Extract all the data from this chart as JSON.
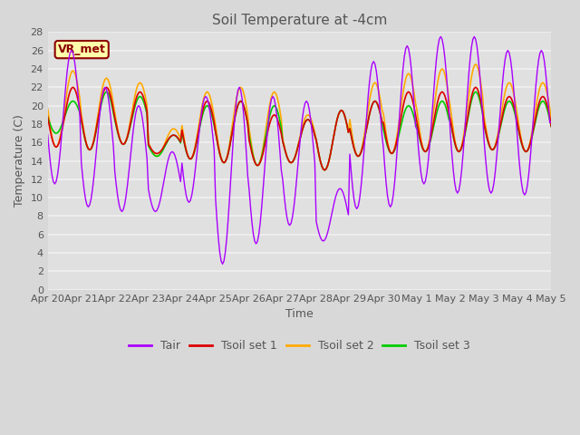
{
  "title": "Soil Temperature at -4cm",
  "xlabel": "Time",
  "ylabel": "Temperature (C)",
  "ylim": [
    0,
    28
  ],
  "yticks": [
    0,
    2,
    4,
    6,
    8,
    10,
    12,
    14,
    16,
    18,
    20,
    22,
    24,
    26,
    28
  ],
  "bg_color": "#d8d8d8",
  "plot_bg_color": "#e0e0e0",
  "grid_color": "#f0f0f0",
  "annotation_text": "VR_met",
  "annotation_bg": "#ffffaa",
  "annotation_border": "#8B0000",
  "colors": {
    "Tair": "#aa00ff",
    "Tsoil1": "#dd0000",
    "Tsoil2": "#ffaa00",
    "Tsoil3": "#00cc00"
  },
  "legend_labels": [
    "Tair",
    "Tsoil set 1",
    "Tsoil set 2",
    "Tsoil set 3"
  ],
  "tick_labels": [
    "Apr 20",
    "Apr 21",
    "Apr 22",
    "Apr 23",
    "Apr 24",
    "Apr 25",
    "Apr 26",
    "Apr 27",
    "Apr 28",
    "Apr 29",
    "Apr 30",
    "May 1",
    "May 2",
    "May 3",
    "May 4",
    "May 5"
  ],
  "num_points": 361,
  "title_fontsize": 11,
  "tick_fontsize": 8,
  "label_fontsize": 9,
  "legend_fontsize": 9
}
